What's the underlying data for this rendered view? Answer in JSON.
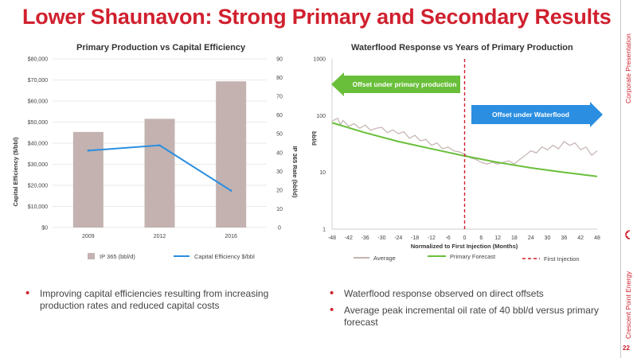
{
  "slide": {
    "title": "Lower Shaunavon: Strong Primary and Secondary Results",
    "side_top": "Corporate Presentation",
    "side_bottom": "Crescent Point Energy",
    "page_number": "22",
    "accent_color": "#d0202e"
  },
  "bullets_left": [
    "Improving capital efficiencies resulting from increasing production rates and reduced capital costs"
  ],
  "bullets_right": [
    "Waterflood response observed on direct offsets",
    "Average peak incremental oil rate of 40 bbl/d versus primary forecast"
  ],
  "chart_data": [
    {
      "type": "bar",
      "title": "Primary Production vs Capital Efficiency",
      "categories": [
        "2009",
        "2012",
        "2016"
      ],
      "ylabel": "Capital Efficiency ($/bbl)",
      "ylabel2": "IP 365 Rate (bbl/d)",
      "ylim": [
        0,
        80000
      ],
      "y2lim": [
        0,
        90
      ],
      "yticks": [
        "$0",
        "$10,000",
        "$20,000",
        "$30,000",
        "$40,000",
        "$50,000",
        "$60,000",
        "$70,000",
        "$80,000"
      ],
      "y2ticks": [
        "0",
        "10",
        "20",
        "30",
        "40",
        "50",
        "60",
        "70",
        "80",
        "90"
      ],
      "series": [
        {
          "name": "IP 365 (bbl/d)",
          "kind": "bar",
          "axis": "right",
          "color": "#c3b2b0",
          "values": [
            51,
            58,
            78
          ]
        },
        {
          "name": "Capital Efficiency $/bbl",
          "kind": "line",
          "axis": "left",
          "color": "#2b8ee0",
          "values": [
            36500,
            39000,
            17500
          ]
        }
      ],
      "legend_position": "bottom"
    },
    {
      "type": "line",
      "title": "Waterflood Response vs Years of Primary Production",
      "xlabel": "Normalized to First Injection (Months)",
      "ylabel": "bbl/d",
      "yscale": "log",
      "xlim": [
        -48,
        48
      ],
      "ylim": [
        1,
        1000
      ],
      "xticks": [
        "-48",
        "-42",
        "-36",
        "-30",
        "-24",
        "-18",
        "-12",
        "-6",
        "0",
        "6",
        "12",
        "18",
        "24",
        "30",
        "36",
        "42",
        "48"
      ],
      "yticks": [
        "1",
        "10",
        "100",
        "1000"
      ],
      "series": [
        {
          "name": "Average",
          "color": "#c3b2b0",
          "x": [
            -48,
            -46,
            -45,
            -44,
            -42,
            -40,
            -38,
            -36,
            -34,
            -32,
            -30,
            -28,
            -26,
            -24,
            -22,
            -20,
            -18,
            -16,
            -14,
            -12,
            -10,
            -8,
            -6,
            -4,
            -2,
            0,
            2,
            4,
            6,
            8,
            10,
            12,
            14,
            16,
            18,
            20,
            22,
            24,
            26,
            28,
            30,
            32,
            34,
            36,
            38,
            40,
            42,
            44,
            46,
            48
          ],
          "y": [
            80,
            90,
            70,
            82,
            65,
            72,
            60,
            68,
            55,
            60,
            62,
            50,
            56,
            48,
            52,
            40,
            45,
            36,
            38,
            30,
            33,
            26,
            28,
            24,
            23,
            21,
            18,
            17,
            15,
            14,
            15,
            14,
            15,
            16,
            14,
            17,
            20,
            24,
            22,
            28,
            25,
            30,
            26,
            35,
            30,
            33,
            25,
            28,
            20,
            24
          ]
        },
        {
          "name": "Primary Forecast",
          "color": "#6abf3a",
          "x": [
            -48,
            -36,
            -24,
            -12,
            0,
            12,
            24,
            36,
            48
          ],
          "y": [
            75,
            50,
            35,
            26,
            19.5,
            15,
            12,
            10,
            8.5
          ]
        }
      ],
      "markers": [
        {
          "name": "First Injection",
          "x": 0,
          "color": "#d0202e",
          "style": "dashed"
        }
      ],
      "annotations": [
        {
          "text": "Offset under primary production",
          "direction": "left",
          "color": "#6abf3a"
        },
        {
          "text": "Offset under Waterflood",
          "direction": "right",
          "color": "#2b8ee0"
        }
      ],
      "legend_position": "bottom"
    }
  ]
}
